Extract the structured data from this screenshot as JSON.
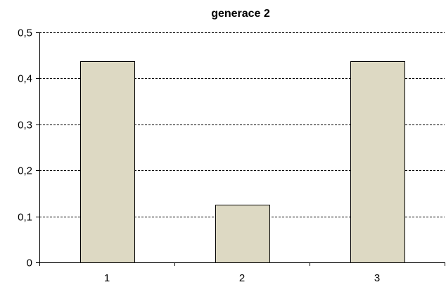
{
  "chart_data": {
    "type": "bar",
    "title": "generace 2",
    "categories": [
      "1",
      "2",
      "3"
    ],
    "values": [
      0.4375,
      0.125,
      0.4375
    ],
    "ylim": [
      0,
      0.5
    ],
    "yticks": [
      0,
      0.1,
      0.2,
      0.3,
      0.4,
      0.5
    ],
    "ytick_labels": [
      "0",
      "0,1",
      "0,2",
      "0,3",
      "0,4",
      "0,5"
    ],
    "xlabel": "",
    "ylabel": "",
    "grid": true,
    "legend": "none",
    "colors": {
      "bar_fill": "#ddd9c3",
      "bar_stroke": "#000000",
      "grid": "#000000",
      "axis": "#000000"
    }
  }
}
